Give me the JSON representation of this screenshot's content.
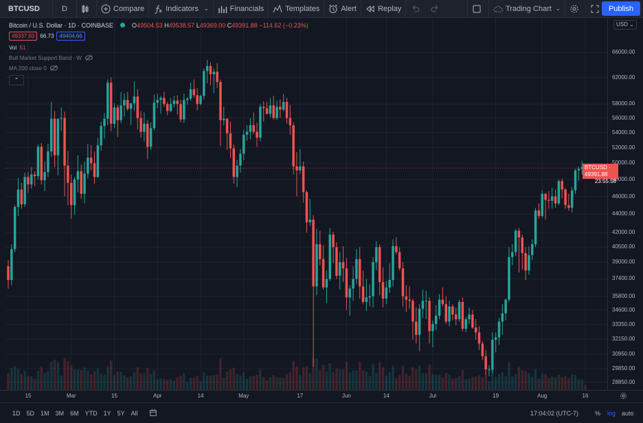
{
  "toolbar": {
    "symbol": "BTCUSD",
    "interval": "D",
    "compare": "Compare",
    "indicators": "Indicators",
    "financials": "Financials",
    "templates": "Templates",
    "alert": "Alert",
    "replay": "Replay",
    "layout_name": "Trading Chart",
    "publish": "Publish"
  },
  "legend": {
    "title": "Bitcoin / U.S. Dollar · 1D · COINBASE",
    "o_label": "O",
    "o_value": "49504.53",
    "h_label": "H",
    "h_value": "49538.57",
    "l_label": "L",
    "l_value": "49369.00",
    "c_label": "C",
    "c_value": "49391.88",
    "change": "−114.62 (−0.23%)",
    "bid": "49337.93",
    "spread": "66.73",
    "ask": "49404.66",
    "vol_label": "Vol",
    "vol_value": "51",
    "indicator1": "Bull Market Support Band - W",
    "indicator2": "MA 200 close 0"
  },
  "price_axis": {
    "currency": "USD",
    "ticks": [
      "66000.00",
      "62000.00",
      "58000.00",
      "56000.00",
      "54000.00",
      "52000.00",
      "50000.00",
      "48000.00",
      "46000.00",
      "44000.00",
      "42000.00",
      "40500.00",
      "39000.00",
      "37400.00",
      "35800.00",
      "34600.00",
      "33350.00",
      "32150.00",
      "30950.00",
      "29850.00",
      "28850.00"
    ],
    "last_symbol": "BTCUSD",
    "last_price": "49391.88",
    "countdown": "23:55:58"
  },
  "time_axis": {
    "ticks": [
      "15",
      "Mar",
      "15",
      "Apr",
      "14",
      "May",
      "17",
      "Jun",
      "14",
      "Jul",
      "19",
      "Aug",
      "16"
    ]
  },
  "bottom": {
    "ranges": [
      "1D",
      "5D",
      "1M",
      "3M",
      "6M",
      "YTD",
      "1Y",
      "5Y",
      "All"
    ],
    "clock": "17:04:02 (UTC-7)",
    "percent": "%",
    "log": "log",
    "auto": "auto"
  },
  "colors": {
    "up": "#26a69a",
    "down": "#ef5350",
    "accent": "#2962ff",
    "background": "#131722"
  },
  "chart_data": {
    "type": "candlestick",
    "series": [
      {
        "name": "BTCUSD",
        "ohlc": [
          [
            38600,
            39200,
            36500,
            37300
          ],
          [
            37300,
            40800,
            36800,
            40300
          ],
          [
            40300,
            45000,
            40000,
            44800
          ],
          [
            44800,
            48200,
            43800,
            46800
          ],
          [
            46800,
            47600,
            44600,
            45100
          ],
          [
            45100,
            48800,
            44800,
            48300
          ],
          [
            48300,
            48900,
            46400,
            47400
          ],
          [
            47400,
            49500,
            46900,
            48600
          ],
          [
            48600,
            49000,
            47200,
            48400
          ],
          [
            48400,
            52400,
            48000,
            52100
          ],
          [
            52100,
            52600,
            47400,
            47900
          ],
          [
            47900,
            50200,
            46600,
            48900
          ],
          [
            48900,
            52500,
            48300,
            51500
          ],
          [
            51500,
            58300,
            50800,
            55900
          ],
          [
            55900,
            57000,
            49500,
            51000
          ],
          [
            51000,
            55900,
            48500,
            55900
          ],
          [
            55900,
            57500,
            54200,
            56000
          ],
          [
            56000,
            56900,
            46000,
            49700
          ],
          [
            49700,
            51600,
            45000,
            47600
          ],
          [
            47600,
            48600,
            43500,
            45000
          ],
          [
            45000,
            48300,
            43900,
            48000
          ],
          [
            48000,
            51000,
            46500,
            49000
          ],
          [
            49000,
            49800,
            45700,
            46300
          ],
          [
            46300,
            50200,
            45200,
            48700
          ],
          [
            48700,
            52500,
            48100,
            50700
          ],
          [
            50700,
            52300,
            49100,
            50000
          ],
          [
            50000,
            51500,
            47500,
            48300
          ],
          [
            48300,
            53300,
            48200,
            52300
          ],
          [
            52300,
            55500,
            51600,
            54900
          ],
          [
            54900,
            56700,
            53200,
            55900
          ],
          [
            55900,
            61700,
            55000,
            61200
          ],
          [
            61200,
            62000,
            54200,
            55200
          ],
          [
            55200,
            58100,
            54600,
            57500
          ],
          [
            57500,
            57900,
            53400,
            55700
          ],
          [
            55700,
            59800,
            55300,
            57800
          ],
          [
            57800,
            59600,
            56200,
            58600
          ],
          [
            58600,
            59800,
            57000,
            57300
          ],
          [
            57300,
            58200,
            55000,
            58100
          ],
          [
            58100,
            61400,
            57000,
            59100
          ],
          [
            59100,
            60200,
            54400,
            56000
          ],
          [
            56000,
            57000,
            53300,
            54100
          ],
          [
            54100,
            56800,
            52800,
            55200
          ],
          [
            55200,
            55700,
            50500,
            52100
          ],
          [
            52100,
            55400,
            51700,
            54600
          ],
          [
            54600,
            59400,
            54300,
            58200
          ],
          [
            58200,
            59500,
            57400,
            58600
          ],
          [
            58600,
            59200,
            56600,
            58900
          ],
          [
            58900,
            59800,
            57600,
            58000
          ],
          [
            58000,
            58300,
            56400,
            57000
          ],
          [
            57000,
            58900,
            56800,
            58000
          ],
          [
            58000,
            59200,
            57500,
            58500
          ],
          [
            58500,
            59300,
            56500,
            58000
          ],
          [
            58000,
            58600,
            55400,
            55800
          ],
          [
            55800,
            59500,
            55300,
            58600
          ],
          [
            58600,
            59000,
            57900,
            58800
          ],
          [
            58800,
            61200,
            58500,
            60200
          ],
          [
            60200,
            61700,
            58900,
            59300
          ],
          [
            59300,
            60400,
            57100,
            58000
          ],
          [
            58000,
            59400,
            57800,
            59200
          ],
          [
            59200,
            63400,
            58700,
            63000
          ],
          [
            63000,
            64800,
            61100,
            63800
          ],
          [
            63800,
            64400,
            60800,
            62500
          ],
          [
            62500,
            63400,
            59600,
            62900
          ],
          [
            62900,
            64300,
            60400,
            61300
          ],
          [
            61300,
            61700,
            52200,
            55700
          ],
          [
            55700,
            57600,
            55000,
            55900
          ],
          [
            55900,
            56000,
            51700,
            53900
          ],
          [
            53900,
            55500,
            50700,
            51900
          ],
          [
            51900,
            52400,
            47500,
            48300
          ],
          [
            48300,
            50400,
            47100,
            49700
          ],
          [
            49700,
            51800,
            48800,
            51200
          ],
          [
            51200,
            54400,
            50400,
            53700
          ],
          [
            53700,
            55000,
            52900,
            54100
          ],
          [
            54100,
            56000,
            53100,
            55000
          ],
          [
            55000,
            56800,
            53800,
            54100
          ],
          [
            54100,
            55400,
            52100,
            53300
          ],
          [
            53300,
            58000,
            52800,
            57600
          ],
          [
            57600,
            58400,
            55500,
            57400
          ],
          [
            57400,
            58300,
            56500,
            56600
          ],
          [
            56600,
            58900,
            56100,
            57800
          ],
          [
            57800,
            59200,
            55800,
            56000
          ],
          [
            56000,
            58500,
            55700,
            57600
          ],
          [
            57600,
            58700,
            56000,
            57200
          ],
          [
            57200,
            59500,
            56900,
            58300
          ],
          [
            58300,
            58900,
            55200,
            56000
          ],
          [
            56000,
            57900,
            53700,
            55000
          ],
          [
            55000,
            55400,
            48600,
            49600
          ],
          [
            49600,
            51400,
            46000,
            49100
          ],
          [
            49100,
            51800,
            48700,
            49600
          ],
          [
            49600,
            50200,
            45300,
            46500
          ],
          [
            46500,
            46700,
            42000,
            43100
          ],
          [
            43100,
            45700,
            42700,
            43400
          ],
          [
            43400,
            43900,
            30000,
            36700
          ],
          [
            36700,
            42400,
            35900,
            40800
          ],
          [
            40800,
            42200,
            38700,
            39300
          ],
          [
            39300,
            40700,
            36400,
            36600
          ],
          [
            36600,
            38200,
            35200,
            37400
          ],
          [
            37400,
            42500,
            37200,
            41800
          ],
          [
            41800,
            42100,
            38900,
            40500
          ],
          [
            40500,
            41000,
            37400,
            37700
          ],
          [
            37700,
            40000,
            36400,
            39000
          ],
          [
            39000,
            40600,
            37100,
            38400
          ],
          [
            38400,
            39400,
            34600,
            35700
          ],
          [
            35700,
            36800,
            34100,
            36500
          ],
          [
            36500,
            38600,
            35400,
            37400
          ],
          [
            37400,
            40300,
            36900,
            39300
          ],
          [
            39300,
            40500,
            35600,
            36700
          ],
          [
            36700,
            38200,
            35100,
            35300
          ],
          [
            35300,
            37400,
            34500,
            35700
          ],
          [
            35700,
            36900,
            34900,
            35800
          ],
          [
            35800,
            39500,
            34800,
            39000
          ],
          [
            39000,
            41100,
            38200,
            40500
          ],
          [
            40500,
            40800,
            35900,
            37100
          ],
          [
            37100,
            38500,
            34800,
            35600
          ],
          [
            35600,
            37200,
            35100,
            36600
          ],
          [
            36600,
            38900,
            36100,
            37300
          ],
          [
            37300,
            41300,
            36700,
            40600
          ],
          [
            40600,
            41500,
            39800,
            40000
          ],
          [
            40000,
            40500,
            38200,
            38400
          ],
          [
            38400,
            39000,
            34900,
            35800
          ],
          [
            35800,
            36800,
            34400,
            35500
          ],
          [
            35500,
            36700,
            34700,
            35400
          ],
          [
            35400,
            35600,
            32100,
            33600
          ],
          [
            33600,
            34800,
            31800,
            32500
          ],
          [
            32500,
            35100,
            31200,
            34700
          ],
          [
            34700,
            36400,
            33900,
            35400
          ],
          [
            35400,
            36300,
            33800,
            35400
          ],
          [
            35400,
            35700,
            31800,
            32800
          ],
          [
            32800,
            33700,
            31500,
            33400
          ],
          [
            33400,
            35000,
            32900,
            34100
          ],
          [
            34100,
            36000,
            33800,
            35500
          ],
          [
            35500,
            36600,
            34900,
            35100
          ],
          [
            35100,
            35800,
            33400,
            33600
          ],
          [
            33600,
            35400,
            33200,
            34900
          ],
          [
            34900,
            35100,
            33700,
            34200
          ],
          [
            34200,
            34800,
            33300,
            33800
          ],
          [
            33800,
            35500,
            33600,
            35300
          ],
          [
            35300,
            35700,
            32800,
            33000
          ],
          [
            33000,
            34000,
            32700,
            33800
          ],
          [
            33800,
            34800,
            33400,
            34200
          ],
          [
            34200,
            34600,
            33000,
            33100
          ],
          [
            33100,
            33800,
            32100,
            32700
          ],
          [
            32700,
            33200,
            31300,
            31800
          ],
          [
            31800,
            32000,
            30500,
            30800
          ],
          [
            30800,
            31300,
            29400,
            29800
          ],
          [
            29800,
            30100,
            29300,
            29800
          ],
          [
            29800,
            32700,
            29500,
            32100
          ],
          [
            32100,
            32700,
            31100,
            32300
          ],
          [
            32300,
            33900,
            31700,
            33600
          ],
          [
            33600,
            35100,
            32500,
            34300
          ],
          [
            34300,
            35600,
            33700,
            35500
          ],
          [
            35500,
            40500,
            35300,
            39500
          ],
          [
            39500,
            40800,
            38700,
            40000
          ],
          [
            40000,
            42400,
            39600,
            42200
          ],
          [
            42200,
            42500,
            38000,
            41500
          ],
          [
            41500,
            41800,
            38300,
            39900
          ],
          [
            39900,
            40500,
            37300,
            38200
          ],
          [
            38200,
            40600,
            37800,
            39700
          ],
          [
            39700,
            41300,
            39200,
            40800
          ],
          [
            40800,
            44700,
            40500,
            44400
          ],
          [
            44400,
            45200,
            43500,
            43800
          ],
          [
            43800,
            46700,
            43600,
            46300
          ],
          [
            46300,
            46400,
            43400,
            45600
          ],
          [
            45600,
            46600,
            44600,
            45500
          ],
          [
            45500,
            47000,
            44600,
            46000
          ],
          [
            46000,
            46800,
            44700,
            45200
          ],
          [
            45200,
            48000,
            45000,
            47800
          ],
          [
            47800,
            48100,
            45800,
            46800
          ],
          [
            46800,
            47000,
            44600,
            45000
          ],
          [
            45000,
            46300,
            44400,
            44700
          ],
          [
            44700,
            47100,
            44200,
            46700
          ],
          [
            46700,
            49300,
            46300,
            49100
          ],
          [
            49100,
            49600,
            47800,
            49300
          ],
          [
            49300,
            50300,
            48600,
            49500
          ],
          [
            49504.53,
            49538.57,
            49369.0,
            49391.88
          ]
        ]
      }
    ],
    "volume_bars": 169,
    "yscale": "log",
    "ylim": [
      28300,
      72000
    ],
    "grid": true,
    "crosshair_price": 49391.88
  }
}
